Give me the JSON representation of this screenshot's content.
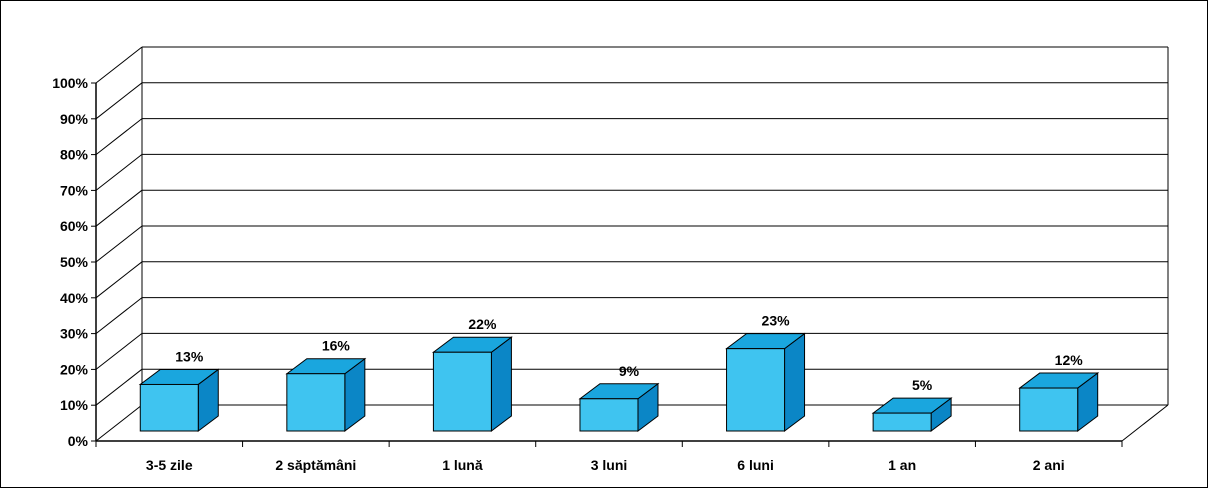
{
  "chart_data": {
    "type": "bar",
    "style": "3d-column",
    "categories": [
      "3-5 zile",
      "2 săptămâni",
      "1 lună",
      "3 luni",
      "6 luni",
      "1 an",
      "2 ani"
    ],
    "values": [
      13,
      16,
      22,
      9,
      23,
      5,
      12
    ],
    "data_labels": [
      "13%",
      "16%",
      "22%",
      "9%",
      "23%",
      "5%",
      "12%"
    ],
    "y_ticks": [
      "0%",
      "10%",
      "20%",
      "30%",
      "40%",
      "50%",
      "60%",
      "70%",
      "80%",
      "90%",
      "100%"
    ],
    "ylim": [
      0,
      100
    ],
    "grid": true,
    "legend": "none",
    "title": "",
    "xlabel": "",
    "ylabel": "",
    "colors": {
      "bar_front": "#3FC4F0",
      "bar_side": "#0B86C6",
      "bar_top": "#1AA6DE",
      "gridline": "#000000"
    }
  }
}
